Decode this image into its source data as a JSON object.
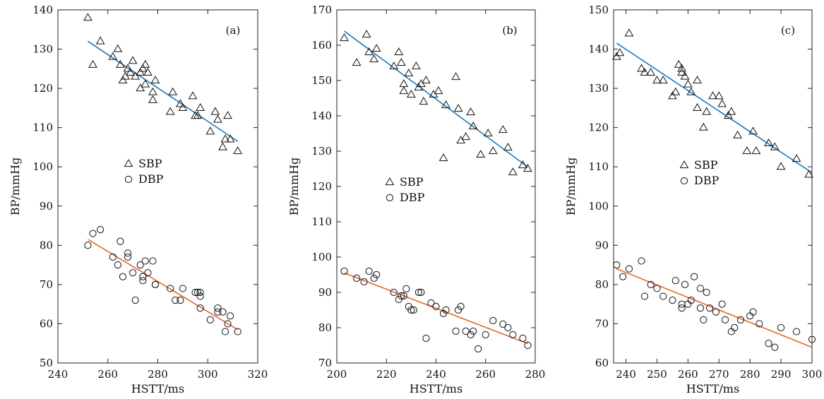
{
  "chart_data": [
    {
      "type": "scatter",
      "panel_label": "(a)",
      "xlabel": "HSTT/ms",
      "ylabel": "BP/mmHg",
      "xlim": [
        240,
        320
      ],
      "ylim": [
        50,
        140
      ],
      "xticks": [
        240,
        260,
        280,
        300,
        320
      ],
      "yticks": [
        50,
        60,
        70,
        80,
        90,
        100,
        110,
        120,
        130,
        140
      ],
      "grid": false,
      "legend": "center-left",
      "series": [
        {
          "name": "SBP",
          "marker": "triangle",
          "fit_color": "#1f77b4",
          "fit_line": [
            [
              252,
              132
            ],
            [
              312,
              106.5
            ]
          ],
          "points": [
            [
              252,
              138
            ],
            [
              254,
              126
            ],
            [
              257,
              132
            ],
            [
              262,
              128
            ],
            [
              264,
              130
            ],
            [
              265,
              126
            ],
            [
              266,
              122
            ],
            [
              267,
              123
            ],
            [
              268,
              125
            ],
            [
              269,
              124
            ],
            [
              270,
              127
            ],
            [
              271,
              123
            ],
            [
              273,
              124
            ],
            [
              273,
              120
            ],
            [
              274,
              125
            ],
            [
              275,
              121
            ],
            [
              275,
              126
            ],
            [
              276,
              124
            ],
            [
              278,
              119
            ],
            [
              278,
              117
            ],
            [
              279,
              122
            ],
            [
              285,
              114
            ],
            [
              286,
              119
            ],
            [
              289,
              116
            ],
            [
              290,
              115
            ],
            [
              294,
              118
            ],
            [
              295,
              113
            ],
            [
              296,
              113
            ],
            [
              297,
              115
            ],
            [
              301,
              109
            ],
            [
              303,
              114
            ],
            [
              304,
              112
            ],
            [
              306,
              105
            ],
            [
              307,
              107
            ],
            [
              308,
              113
            ],
            [
              309,
              107
            ],
            [
              312,
              104
            ]
          ]
        },
        {
          "name": "DBP",
          "marker": "circle",
          "fit_color": "#e0692a",
          "fit_line": [
            [
              252,
              81.5
            ],
            [
              312,
              58.5
            ]
          ],
          "points": [
            [
              252,
              80
            ],
            [
              254,
              83
            ],
            [
              257,
              84
            ],
            [
              262,
              77
            ],
            [
              264,
              75
            ],
            [
              265,
              81
            ],
            [
              266,
              72
            ],
            [
              268,
              78
            ],
            [
              268,
              77
            ],
            [
              270,
              73
            ],
            [
              271,
              66
            ],
            [
              273,
              75
            ],
            [
              274,
              72
            ],
            [
              274,
              71
            ],
            [
              275,
              76
            ],
            [
              276,
              73
            ],
            [
              278,
              76
            ],
            [
              279,
              70
            ],
            [
              279,
              70
            ],
            [
              285,
              69
            ],
            [
              287,
              66
            ],
            [
              289,
              66
            ],
            [
              290,
              69
            ],
            [
              295,
              68
            ],
            [
              296,
              68
            ],
            [
              297,
              67
            ],
            [
              297,
              64
            ],
            [
              297,
              68
            ],
            [
              301,
              61
            ],
            [
              304,
              64
            ],
            [
              304,
              63
            ],
            [
              306,
              63
            ],
            [
              307,
              58
            ],
            [
              308,
              60
            ],
            [
              309,
              62
            ],
            [
              312,
              58
            ]
          ]
        }
      ]
    },
    {
      "type": "scatter",
      "panel_label": "(b)",
      "xlabel": "HSTT/ms",
      "ylabel": "BP/mmHg",
      "xlim": [
        200,
        280
      ],
      "ylim": [
        70,
        170
      ],
      "xticks": [
        200,
        220,
        240,
        260,
        280
      ],
      "yticks": [
        70,
        80,
        90,
        100,
        110,
        120,
        130,
        140,
        150,
        160,
        170
      ],
      "grid": false,
      "legend": "center-left",
      "series": [
        {
          "name": "SBP",
          "marker": "triangle",
          "fit_color": "#1f77b4",
          "fit_line": [
            [
              203,
              164
            ],
            [
              277,
              125.5
            ]
          ],
          "points": [
            [
              203,
              162
            ],
            [
              208,
              155
            ],
            [
              212,
              163
            ],
            [
              213,
              158
            ],
            [
              215,
              156
            ],
            [
              216,
              159
            ],
            [
              223,
              154
            ],
            [
              225,
              158
            ],
            [
              226,
              155
            ],
            [
              227,
              149
            ],
            [
              227,
              147
            ],
            [
              229,
              152
            ],
            [
              230,
              146
            ],
            [
              232,
              154
            ],
            [
              233,
              148
            ],
            [
              234,
              149
            ],
            [
              235,
              144
            ],
            [
              236,
              150
            ],
            [
              239,
              146
            ],
            [
              241,
              147
            ],
            [
              243,
              128
            ],
            [
              244,
              143
            ],
            [
              248,
              151
            ],
            [
              249,
              142
            ],
            [
              250,
              133
            ],
            [
              252,
              134
            ],
            [
              254,
              141
            ],
            [
              255,
              137
            ],
            [
              258,
              129
            ],
            [
              261,
              135
            ],
            [
              263,
              130
            ],
            [
              267,
              136
            ],
            [
              269,
              131
            ],
            [
              271,
              124
            ],
            [
              275,
              126
            ],
            [
              277,
              125
            ]
          ]
        },
        {
          "name": "DBP",
          "marker": "circle",
          "fit_color": "#e0692a",
          "fit_line": [
            [
              203,
              95.5
            ],
            [
              277,
              75.5
            ]
          ],
          "points": [
            [
              203,
              96
            ],
            [
              208,
              94
            ],
            [
              211,
              93
            ],
            [
              213,
              96
            ],
            [
              215,
              94
            ],
            [
              216,
              95
            ],
            [
              223,
              90
            ],
            [
              225,
              88
            ],
            [
              226,
              89
            ],
            [
              227,
              89
            ],
            [
              228,
              91
            ],
            [
              229,
              86
            ],
            [
              230,
              85
            ],
            [
              231,
              85
            ],
            [
              233,
              90
            ],
            [
              234,
              90
            ],
            [
              236,
              77
            ],
            [
              238,
              87
            ],
            [
              240,
              86
            ],
            [
              243,
              84
            ],
            [
              244,
              85
            ],
            [
              248,
              79
            ],
            [
              249,
              85
            ],
            [
              250,
              86
            ],
            [
              252,
              79
            ],
            [
              254,
              78
            ],
            [
              255,
              79
            ],
            [
              257,
              74
            ],
            [
              260,
              78
            ],
            [
              263,
              82
            ],
            [
              267,
              81
            ],
            [
              269,
              80
            ],
            [
              271,
              78
            ],
            [
              275,
              77
            ],
            [
              277,
              75
            ]
          ]
        }
      ]
    },
    {
      "type": "scatter",
      "panel_label": "(c)",
      "xlabel": "HSTT/ms",
      "ylabel": "BP/mmHg",
      "xlim": [
        236,
        300
      ],
      "ylim": [
        60,
        150
      ],
      "xticks": [
        240,
        250,
        260,
        270,
        280,
        290,
        300
      ],
      "yticks": [
        60,
        70,
        80,
        90,
        100,
        110,
        120,
        130,
        140,
        150
      ],
      "grid": false,
      "legend": "center-left",
      "series": [
        {
          "name": "SBP",
          "marker": "triangle",
          "fit_color": "#1f77b4",
          "fit_line": [
            [
              237,
              141.5
            ],
            [
              300,
              108.5
            ]
          ],
          "points": [
            [
              237,
              138
            ],
            [
              238,
              139
            ],
            [
              241,
              144
            ],
            [
              245,
              135
            ],
            [
              246,
              134
            ],
            [
              248,
              134
            ],
            [
              250,
              132
            ],
            [
              252,
              132
            ],
            [
              255,
              128
            ],
            [
              256,
              129
            ],
            [
              257,
              136
            ],
            [
              258,
              134
            ],
            [
              258,
              135
            ],
            [
              259,
              133
            ],
            [
              260,
              131
            ],
            [
              261,
              129
            ],
            [
              263,
              132
            ],
            [
              263,
              125
            ],
            [
              265,
              120
            ],
            [
              266,
              124
            ],
            [
              268,
              128
            ],
            [
              270,
              128
            ],
            [
              271,
              126
            ],
            [
              273,
              123
            ],
            [
              274,
              124
            ],
            [
              276,
              118
            ],
            [
              279,
              114
            ],
            [
              281,
              119
            ],
            [
              282,
              114
            ],
            [
              286,
              116
            ],
            [
              288,
              115
            ],
            [
              290,
              110
            ],
            [
              295,
              112
            ],
            [
              299,
              108
            ]
          ]
        },
        {
          "name": "DBP",
          "marker": "circle",
          "fit_color": "#e0692a",
          "fit_line": [
            [
              237,
              84
            ],
            [
              300,
              64
            ]
          ],
          "points": [
            [
              237,
              85
            ],
            [
              239,
              82
            ],
            [
              241,
              84
            ],
            [
              245,
              86
            ],
            [
              246,
              77
            ],
            [
              248,
              80
            ],
            [
              250,
              79
            ],
            [
              252,
              77
            ],
            [
              255,
              76
            ],
            [
              256,
              81
            ],
            [
              258,
              75
            ],
            [
              258,
              74
            ],
            [
              259,
              80
            ],
            [
              260,
              75
            ],
            [
              261,
              76
            ],
            [
              262,
              82
            ],
            [
              264,
              79
            ],
            [
              264,
              74
            ],
            [
              265,
              71
            ],
            [
              266,
              78
            ],
            [
              267,
              74
            ],
            [
              269,
              73
            ],
            [
              271,
              75
            ],
            [
              272,
              71
            ],
            [
              274,
              68
            ],
            [
              275,
              69
            ],
            [
              277,
              71
            ],
            [
              280,
              72
            ],
            [
              281,
              73
            ],
            [
              283,
              70
            ],
            [
              286,
              65
            ],
            [
              288,
              64
            ],
            [
              290,
              69
            ],
            [
              295,
              68
            ],
            [
              300,
              66
            ]
          ]
        }
      ]
    }
  ]
}
